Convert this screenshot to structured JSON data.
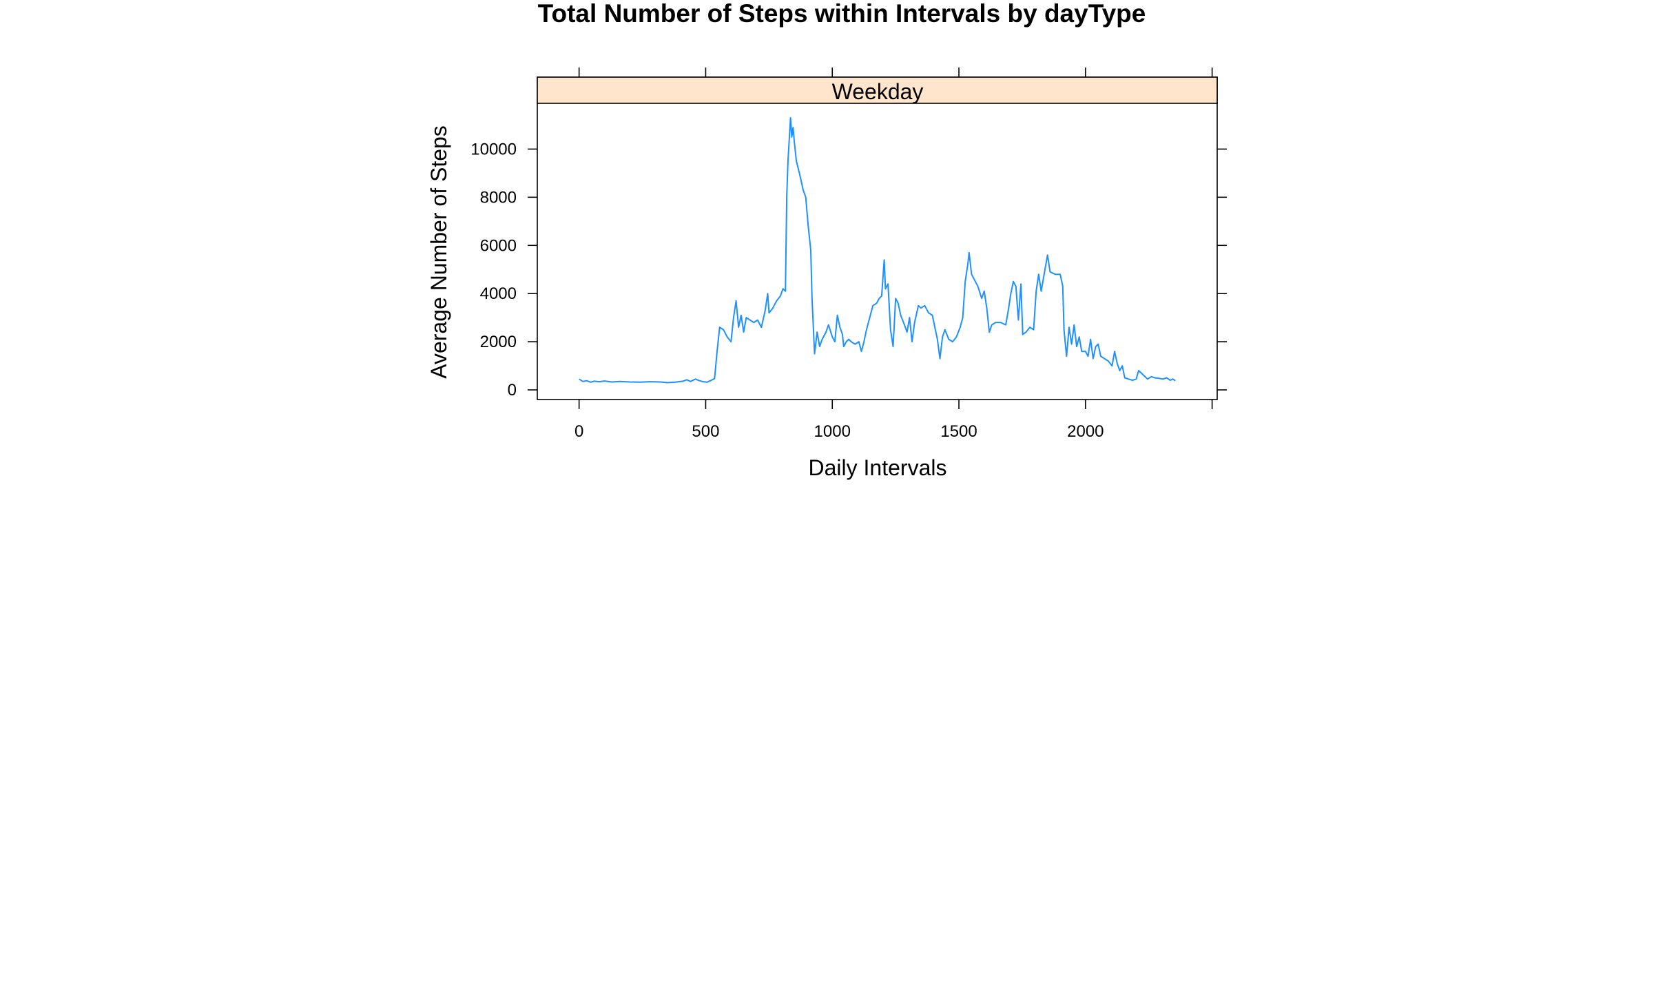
{
  "chart_data": {
    "type": "line",
    "title": "Total Number of Steps within Intervals by dayType",
    "panel_label": "Weekday",
    "xlabel": "Daily Intervals",
    "ylabel": "Average Number of Steps",
    "xlim": [
      -165,
      2520
    ],
    "ylim": [
      -400,
      11900
    ],
    "x_ticks": [
      0,
      500,
      1000,
      1500,
      2000
    ],
    "y_ticks": [
      0,
      2000,
      4000,
      6000,
      8000,
      10000
    ],
    "grid": false,
    "line_color": "#1e90ff",
    "strip_color": "#ffe5cc",
    "series": [
      {
        "values": [
          [
            0,
            450
          ],
          [
            15,
            350
          ],
          [
            30,
            380
          ],
          [
            45,
            320
          ],
          [
            60,
            360
          ],
          [
            80,
            340
          ],
          [
            100,
            370
          ],
          [
            130,
            330
          ],
          [
            160,
            350
          ],
          [
            200,
            330
          ],
          [
            240,
            320
          ],
          [
            280,
            340
          ],
          [
            320,
            330
          ],
          [
            350,
            300
          ],
          [
            380,
            320
          ],
          [
            410,
            360
          ],
          [
            425,
            420
          ],
          [
            440,
            350
          ],
          [
            460,
            450
          ],
          [
            475,
            380
          ],
          [
            490,
            340
          ],
          [
            505,
            320
          ],
          [
            520,
            390
          ],
          [
            535,
            470
          ],
          [
            545,
            1600
          ],
          [
            555,
            2600
          ],
          [
            570,
            2500
          ],
          [
            585,
            2200
          ],
          [
            600,
            2000
          ],
          [
            610,
            3000
          ],
          [
            620,
            3700
          ],
          [
            630,
            2600
          ],
          [
            640,
            3100
          ],
          [
            650,
            2400
          ],
          [
            660,
            3000
          ],
          [
            675,
            2900
          ],
          [
            690,
            2800
          ],
          [
            705,
            2900
          ],
          [
            720,
            2600
          ],
          [
            735,
            3300
          ],
          [
            745,
            4000
          ],
          [
            750,
            3200
          ],
          [
            765,
            3400
          ],
          [
            780,
            3700
          ],
          [
            795,
            3900
          ],
          [
            805,
            4200
          ],
          [
            815,
            4100
          ],
          [
            820,
            8000
          ],
          [
            825,
            9500
          ],
          [
            835,
            11300
          ],
          [
            840,
            10500
          ],
          [
            845,
            10900
          ],
          [
            850,
            10300
          ],
          [
            858,
            9500
          ],
          [
            870,
            9000
          ],
          [
            885,
            8300
          ],
          [
            895,
            8000
          ],
          [
            905,
            6800
          ],
          [
            915,
            5800
          ],
          [
            920,
            3800
          ],
          [
            930,
            1500
          ],
          [
            940,
            2400
          ],
          [
            950,
            1800
          ],
          [
            960,
            2100
          ],
          [
            975,
            2400
          ],
          [
            985,
            2700
          ],
          [
            1000,
            2200
          ],
          [
            1010,
            2000
          ],
          [
            1020,
            3100
          ],
          [
            1030,
            2600
          ],
          [
            1040,
            2300
          ],
          [
            1045,
            1800
          ],
          [
            1055,
            2000
          ],
          [
            1065,
            2100
          ],
          [
            1075,
            2000
          ],
          [
            1090,
            1900
          ],
          [
            1105,
            2000
          ],
          [
            1115,
            1600
          ],
          [
            1125,
            2000
          ],
          [
            1135,
            2500
          ],
          [
            1145,
            2900
          ],
          [
            1160,
            3500
          ],
          [
            1175,
            3600
          ],
          [
            1185,
            3800
          ],
          [
            1195,
            3900
          ],
          [
            1205,
            5400
          ],
          [
            1210,
            4200
          ],
          [
            1220,
            4400
          ],
          [
            1230,
            2500
          ],
          [
            1240,
            1800
          ],
          [
            1250,
            3800
          ],
          [
            1260,
            3600
          ],
          [
            1270,
            3100
          ],
          [
            1285,
            2700
          ],
          [
            1295,
            2400
          ],
          [
            1305,
            3000
          ],
          [
            1315,
            2000
          ],
          [
            1325,
            2800
          ],
          [
            1340,
            3500
          ],
          [
            1350,
            3400
          ],
          [
            1365,
            3500
          ],
          [
            1380,
            3200
          ],
          [
            1395,
            3100
          ],
          [
            1405,
            2600
          ],
          [
            1415,
            2100
          ],
          [
            1425,
            1300
          ],
          [
            1435,
            2200
          ],
          [
            1445,
            2500
          ],
          [
            1460,
            2100
          ],
          [
            1475,
            2000
          ],
          [
            1490,
            2200
          ],
          [
            1505,
            2600
          ],
          [
            1515,
            3000
          ],
          [
            1525,
            4500
          ],
          [
            1535,
            5200
          ],
          [
            1540,
            5700
          ],
          [
            1550,
            4800
          ],
          [
            1560,
            4600
          ],
          [
            1575,
            4300
          ],
          [
            1590,
            3800
          ],
          [
            1600,
            4100
          ],
          [
            1610,
            3400
          ],
          [
            1620,
            2400
          ],
          [
            1630,
            2700
          ],
          [
            1645,
            2800
          ],
          [
            1665,
            2800
          ],
          [
            1685,
            2700
          ],
          [
            1695,
            3300
          ],
          [
            1705,
            4000
          ],
          [
            1715,
            4500
          ],
          [
            1725,
            4300
          ],
          [
            1735,
            2900
          ],
          [
            1745,
            4400
          ],
          [
            1752,
            2300
          ],
          [
            1765,
            2400
          ],
          [
            1780,
            2600
          ],
          [
            1795,
            2500
          ],
          [
            1805,
            4100
          ],
          [
            1815,
            4800
          ],
          [
            1825,
            4100
          ],
          [
            1840,
            5000
          ],
          [
            1850,
            5600
          ],
          [
            1860,
            4900
          ],
          [
            1880,
            4800
          ],
          [
            1900,
            4800
          ],
          [
            1910,
            4300
          ],
          [
            1915,
            2500
          ],
          [
            1925,
            1400
          ],
          [
            1935,
            2600
          ],
          [
            1945,
            1900
          ],
          [
            1955,
            2700
          ],
          [
            1965,
            1800
          ],
          [
            1975,
            2200
          ],
          [
            1985,
            1600
          ],
          [
            2000,
            1600
          ],
          [
            2010,
            1400
          ],
          [
            2020,
            2100
          ],
          [
            2030,
            1300
          ],
          [
            2040,
            1800
          ],
          [
            2050,
            1900
          ],
          [
            2060,
            1400
          ],
          [
            2075,
            1300
          ],
          [
            2090,
            1200
          ],
          [
            2105,
            1000
          ],
          [
            2115,
            1600
          ],
          [
            2125,
            1100
          ],
          [
            2135,
            800
          ],
          [
            2145,
            1000
          ],
          [
            2155,
            500
          ],
          [
            2170,
            450
          ],
          [
            2185,
            400
          ],
          [
            2200,
            450
          ],
          [
            2210,
            800
          ],
          [
            2220,
            700
          ],
          [
            2230,
            600
          ],
          [
            2245,
            450
          ],
          [
            2260,
            550
          ],
          [
            2275,
            500
          ],
          [
            2290,
            480
          ],
          [
            2305,
            450
          ],
          [
            2320,
            500
          ],
          [
            2335,
            400
          ],
          [
            2345,
            450
          ],
          [
            2355,
            380
          ]
        ]
      }
    ]
  }
}
